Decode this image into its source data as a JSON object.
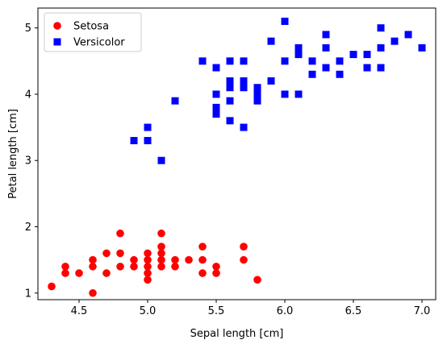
{
  "chart_data": {
    "type": "scatter",
    "xlabel": "Sepal length [cm]",
    "ylabel": "Petal length [cm]",
    "xlim": [
      4.2,
      7.1
    ],
    "ylim": [
      0.9,
      5.3
    ],
    "xticks": [
      4.5,
      5.0,
      5.5,
      6.0,
      6.5,
      7.0
    ],
    "xtick_labels": [
      "4.5",
      "5.0",
      "5.5",
      "6.0",
      "6.5",
      "7.0"
    ],
    "yticks": [
      1,
      2,
      3,
      4,
      5
    ],
    "ytick_labels": [
      "1",
      "2",
      "3",
      "4",
      "5"
    ],
    "grid": false,
    "legend": {
      "placement": "top-left"
    },
    "series": [
      {
        "name": "Setosa",
        "color": "#ff0000",
        "marker": "circle",
        "points": [
          [
            4.3,
            1.1
          ],
          [
            4.4,
            1.3
          ],
          [
            4.4,
            1.4
          ],
          [
            4.5,
            1.3
          ],
          [
            4.6,
            1.0
          ],
          [
            4.6,
            1.4
          ],
          [
            4.6,
            1.5
          ],
          [
            4.7,
            1.3
          ],
          [
            4.7,
            1.6
          ],
          [
            4.8,
            1.4
          ],
          [
            4.8,
            1.6
          ],
          [
            4.8,
            1.9
          ],
          [
            4.9,
            1.4
          ],
          [
            4.9,
            1.5
          ],
          [
            5.0,
            1.2
          ],
          [
            5.0,
            1.3
          ],
          [
            5.0,
            1.4
          ],
          [
            5.0,
            1.5
          ],
          [
            5.0,
            1.6
          ],
          [
            5.1,
            1.4
          ],
          [
            5.1,
            1.5
          ],
          [
            5.1,
            1.6
          ],
          [
            5.1,
            1.7
          ],
          [
            5.1,
            1.9
          ],
          [
            5.2,
            1.4
          ],
          [
            5.2,
            1.5
          ],
          [
            5.3,
            1.5
          ],
          [
            5.4,
            1.3
          ],
          [
            5.4,
            1.5
          ],
          [
            5.4,
            1.7
          ],
          [
            5.5,
            1.3
          ],
          [
            5.5,
            1.4
          ],
          [
            5.7,
            1.5
          ],
          [
            5.7,
            1.7
          ],
          [
            5.8,
            1.2
          ]
        ]
      },
      {
        "name": "Versicolor",
        "color": "#0000ff",
        "marker": "square",
        "points": [
          [
            4.9,
            3.3
          ],
          [
            5.0,
            3.3
          ],
          [
            5.0,
            3.5
          ],
          [
            5.1,
            3.0
          ],
          [
            5.2,
            3.9
          ],
          [
            5.4,
            4.5
          ],
          [
            5.5,
            3.7
          ],
          [
            5.5,
            3.8
          ],
          [
            5.5,
            4.0
          ],
          [
            5.5,
            4.4
          ],
          [
            5.6,
            3.6
          ],
          [
            5.6,
            3.9
          ],
          [
            5.6,
            4.1
          ],
          [
            5.6,
            4.2
          ],
          [
            5.6,
            4.5
          ],
          [
            5.7,
            3.5
          ],
          [
            5.7,
            4.1
          ],
          [
            5.7,
            4.2
          ],
          [
            5.7,
            4.5
          ],
          [
            5.8,
            3.9
          ],
          [
            5.8,
            4.0
          ],
          [
            5.8,
            4.1
          ],
          [
            5.9,
            4.2
          ],
          [
            5.9,
            4.8
          ],
          [
            6.0,
            4.0
          ],
          [
            6.0,
            4.5
          ],
          [
            6.0,
            5.1
          ],
          [
            6.1,
            4.0
          ],
          [
            6.1,
            4.6
          ],
          [
            6.1,
            4.7
          ],
          [
            6.2,
            4.3
          ],
          [
            6.2,
            4.5
          ],
          [
            6.3,
            4.4
          ],
          [
            6.3,
            4.7
          ],
          [
            6.3,
            4.9
          ],
          [
            6.4,
            4.3
          ],
          [
            6.4,
            4.5
          ],
          [
            6.5,
            4.6
          ],
          [
            6.6,
            4.4
          ],
          [
            6.6,
            4.6
          ],
          [
            6.7,
            4.4
          ],
          [
            6.7,
            4.7
          ],
          [
            6.7,
            5.0
          ],
          [
            6.8,
            4.8
          ],
          [
            6.9,
            4.9
          ],
          [
            7.0,
            4.7
          ]
        ]
      }
    ]
  }
}
